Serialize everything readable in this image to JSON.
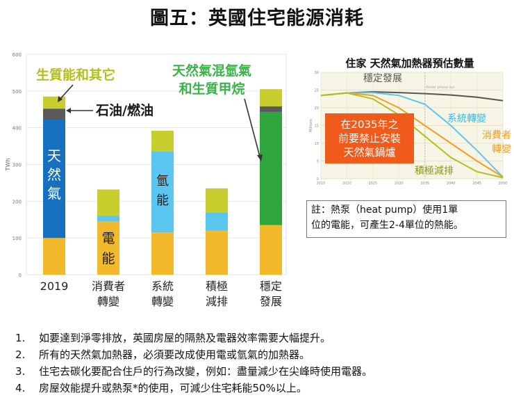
{
  "title": "圖五：英國住宅能源消耗",
  "colors": {
    "gas": "#1670c0",
    "electric": "#f2b92c",
    "hydrogen": "#5bc7f0",
    "oil": "#5a5a5a",
    "bio": "#c8ce2e",
    "hybrid": "#2fa63c",
    "label_yellowgreen": "#b4bf1e",
    "label_green": "#3bb34a",
    "label_cyan": "#39b8e8",
    "label_orange": "#f0a020",
    "orange_box": "#f05a1a"
  },
  "chart_data": [
    {
      "type": "bar",
      "stacked": true,
      "title": "",
      "ylabel": "TWh",
      "ylim": [
        0,
        600
      ],
      "yticks": [
        0,
        100,
        200,
        300,
        400,
        500,
        600
      ],
      "categories": [
        "2019",
        "消費者\n轉變",
        "系統\n轉變",
        "積極\n減排",
        "穩定\n發展"
      ],
      "series": [
        {
          "name": "電能",
          "values": [
            100,
            145,
            115,
            120,
            135
          ],
          "color": "#f2b92c"
        },
        {
          "name": "天然氣",
          "values": [
            322,
            0,
            0,
            0,
            0
          ],
          "color": "#1670c0"
        },
        {
          "name": "氫能",
          "values": [
            0,
            15,
            220,
            50,
            0
          ],
          "color": "#5bc7f0"
        },
        {
          "name": "天然氣混氫氣和生質甲烷",
          "values": [
            0,
            0,
            0,
            0,
            308
          ],
          "color": "#2fa63c"
        },
        {
          "name": "石油/燃油",
          "values": [
            30,
            0,
            0,
            0,
            15
          ],
          "color": "#5a5a5a"
        },
        {
          "name": "生質能和其它",
          "values": [
            33,
            72,
            57,
            65,
            47
          ],
          "color": "#c8ce2e"
        }
      ],
      "annotations": {
        "bio_label": "生質能和其它",
        "oil_label": "石油/燃油",
        "hybrid_label_1": "天然氣混氫氣",
        "hybrid_label_2": "和生質甲烷",
        "gas_in_bar": "天然氣",
        "hydrogen_in_bar": "氫能",
        "electric_in_bar": "電能"
      }
    },
    {
      "type": "line",
      "title": "住家 天然氣加熱器預估數量",
      "ylabel": "Millions",
      "x": [
        2015,
        2020,
        2025,
        2030,
        2035,
        2040,
        2045,
        2050
      ],
      "xlim": [
        2015,
        2050
      ],
      "ylim": [
        0,
        30
      ],
      "yticks": [
        0,
        5,
        10,
        15,
        20,
        25,
        30
      ],
      "series": [
        {
          "name": "穩定發展",
          "color": "#555555",
          "x": [
            2015,
            2020,
            2025,
            2030,
            2035,
            2040,
            2045,
            2050
          ],
          "values": [
            23.5,
            24.2,
            24.5,
            24.3,
            24,
            23.6,
            23,
            22
          ]
        },
        {
          "name": "系統轉變",
          "color": "#5bc7f0",
          "x": [
            2015,
            2020,
            2025,
            2030,
            2035,
            2040,
            2045,
            2050
          ],
          "values": [
            23.5,
            24.2,
            24.3,
            23.5,
            21,
            15,
            8,
            0.5
          ]
        },
        {
          "name": "消費者轉變",
          "color": "#f0a020",
          "x": [
            2015,
            2020,
            2025,
            2030,
            2035,
            2040,
            2045,
            2050
          ],
          "values": [
            23.5,
            24.2,
            23.5,
            20,
            15,
            10,
            5,
            0.5
          ]
        },
        {
          "name": "積極減排",
          "color": "#b4bf1e",
          "x": [
            2015,
            2020,
            2025,
            2030,
            2035,
            2040,
            2045,
            2050
          ],
          "values": [
            23.5,
            24.2,
            22.5,
            18,
            12,
            6,
            2,
            0.3
          ]
        }
      ],
      "annotations": {
        "faint_label": "Boiler phase out",
        "box_lines": [
          "在2035年之",
          "前要禁止安裝",
          "天然氣鍋爐"
        ]
      }
    }
  ],
  "note": {
    "line1": "註：熱泵（heat pump）使用1單",
    "line2": "位的電能，可產生2-4單位的熱能。"
  },
  "bullets": [
    {
      "num": "1.",
      "text": "如要達到淨零排放，英國房屋的隔熱及電器效率需要大幅提升。"
    },
    {
      "num": "2.",
      "text": "所有的天然氣加熱器，必須要改成使用電或氫氣的加熱器。"
    },
    {
      "num": "3.",
      "text": "住宅去碳化要配合住戶的行為改變，例如：盡量減少在尖峰時使用電器。"
    },
    {
      "num": "4.",
      "text": "房屋效能提升或熱泵*的使用，可減少住宅耗能50%以上。"
    }
  ]
}
